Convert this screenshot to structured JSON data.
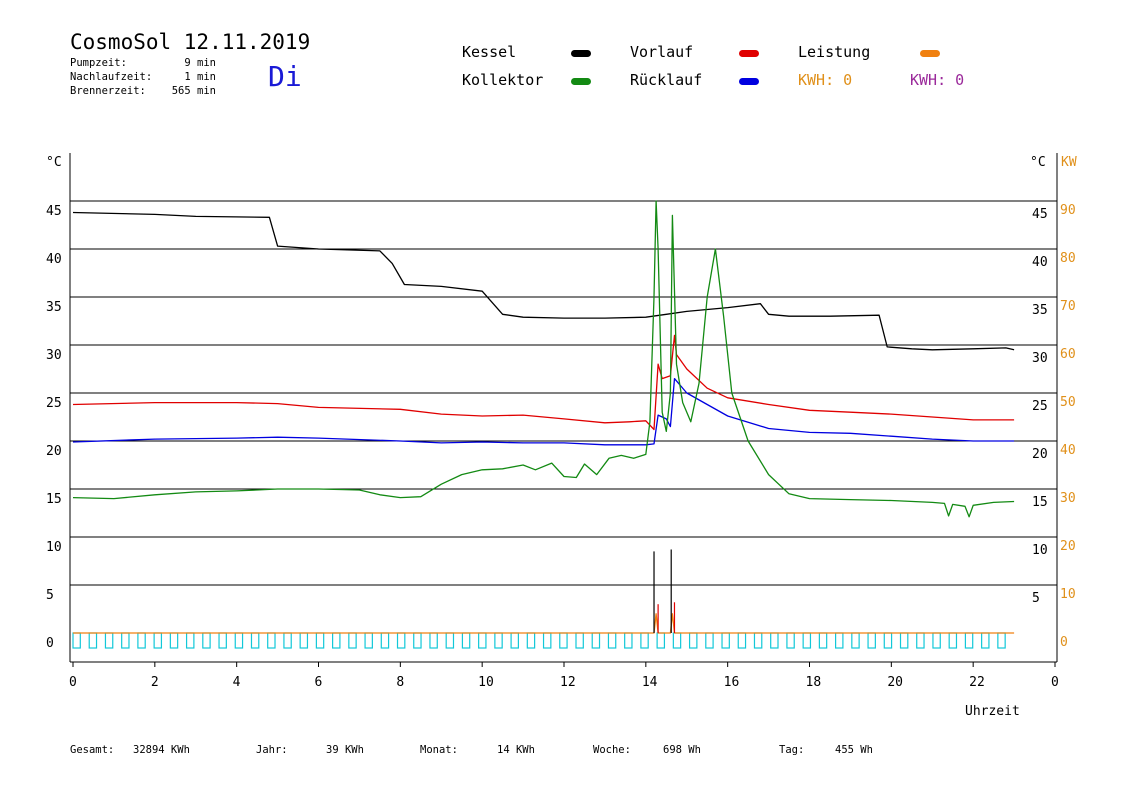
{
  "header": {
    "title": "CosmoSol 12.11.2019",
    "day": "Di",
    "pumpzeit_label": "Pumpzeit:",
    "pumpzeit_value": "9 min",
    "nachlauf_label": "Nachlaufzeit:",
    "nachlauf_value": "1 min",
    "brenner_label": "Brennerzeit:",
    "brenner_value": "565 min"
  },
  "legend": [
    {
      "label": "Kessel",
      "color": "#000000"
    },
    {
      "label": "Vorlauf",
      "color": "#e00000"
    },
    {
      "label": "Leistung",
      "color": "#f08010"
    },
    {
      "label": "Kollektor",
      "color": "#138a13"
    },
    {
      "label": "Rücklauf",
      "color": "#0000e0"
    }
  ],
  "kwh": [
    {
      "text": "KWH: 0",
      "color": "#e0901a"
    },
    {
      "text": "KWH: 0",
      "color": "#9b2a9b"
    }
  ],
  "footer": [
    {
      "label": "Gesamt:",
      "value": "32894 KWh"
    },
    {
      "label": "Jahr:",
      "value": "39 KWh"
    },
    {
      "label": "Monat:",
      "value": "14 KWh"
    },
    {
      "label": "Woche:",
      "value": "698 Wh"
    },
    {
      "label": "Tag:",
      "value": "455 Wh"
    }
  ],
  "chart_data": {
    "type": "line",
    "xlabel": "Uhrzeit",
    "ylabel_left": "°C",
    "ylabel_right": "°C",
    "ylabel_right2": "KW",
    "xlim": [
      0,
      24
    ],
    "ylim": [
      0,
      50
    ],
    "ylim_kw": [
      0,
      100
    ],
    "x_ticks": [
      "0",
      "2",
      "4",
      "6",
      "8",
      "10",
      "12",
      "14",
      "16",
      "18",
      "20",
      "22",
      "0"
    ],
    "y_ticks_left": [
      "0",
      "5",
      "10",
      "15",
      "20",
      "25",
      "30",
      "35",
      "40",
      "45"
    ],
    "y_ticks_right": [
      "5",
      "10",
      "15",
      "20",
      "25",
      "30",
      "35",
      "40",
      "45"
    ],
    "y_ticks_kw": [
      "0",
      "10",
      "20",
      "30",
      "40",
      "50",
      "60",
      "70",
      "80",
      "90"
    ],
    "grid": true,
    "series": [
      {
        "name": "Kessel",
        "color": "#000000",
        "points": [
          [
            0,
            43.8
          ],
          [
            2,
            43.6
          ],
          [
            3,
            43.4
          ],
          [
            4.8,
            43.3
          ],
          [
            5,
            40.3
          ],
          [
            6,
            40
          ],
          [
            7.5,
            39.8
          ],
          [
            7.8,
            38.5
          ],
          [
            8.1,
            36.3
          ],
          [
            9,
            36.1
          ],
          [
            10,
            35.6
          ],
          [
            10.5,
            33.2
          ],
          [
            11,
            32.9
          ],
          [
            12,
            32.8
          ],
          [
            13,
            32.8
          ],
          [
            14,
            32.9
          ],
          [
            14.5,
            33.2
          ],
          [
            15,
            33.5
          ],
          [
            16,
            33.9
          ],
          [
            16.8,
            34.3
          ],
          [
            17,
            33.2
          ],
          [
            17.5,
            33
          ],
          [
            18.5,
            33
          ],
          [
            19.7,
            33.1
          ],
          [
            19.9,
            29.8
          ],
          [
            20.5,
            29.6
          ],
          [
            21,
            29.5
          ],
          [
            22,
            29.6
          ],
          [
            22.8,
            29.7
          ],
          [
            23,
            29.5
          ]
        ]
      },
      {
        "name": "Vorlauf",
        "color": "#e00000",
        "points": [
          [
            0,
            23.8
          ],
          [
            2,
            24
          ],
          [
            4,
            24
          ],
          [
            5,
            23.9
          ],
          [
            6,
            23.5
          ],
          [
            8,
            23.3
          ],
          [
            9,
            22.8
          ],
          [
            10,
            22.6
          ],
          [
            11,
            22.7
          ],
          [
            12,
            22.3
          ],
          [
            13,
            21.9
          ],
          [
            13.6,
            22.0
          ],
          [
            14,
            22.1
          ],
          [
            14.2,
            21.2
          ],
          [
            14.3,
            28
          ],
          [
            14.4,
            26.5
          ],
          [
            14.6,
            26.8
          ],
          [
            14.7,
            31
          ],
          [
            14.75,
            29
          ],
          [
            15,
            27.5
          ],
          [
            15.5,
            25.5
          ],
          [
            16,
            24.5
          ],
          [
            17,
            23.8
          ],
          [
            18,
            23.2
          ],
          [
            19,
            23
          ],
          [
            20,
            22.8
          ],
          [
            21,
            22.5
          ],
          [
            22,
            22.2
          ],
          [
            23,
            22.2
          ]
        ]
      },
      {
        "name": "Rücklauf",
        "color": "#0000e0",
        "points": [
          [
            0,
            19.9
          ],
          [
            2,
            20.2
          ],
          [
            4,
            20.3
          ],
          [
            5,
            20.4
          ],
          [
            6,
            20.3
          ],
          [
            8,
            20.0
          ],
          [
            9,
            19.8
          ],
          [
            10,
            19.9
          ],
          [
            11,
            19.8
          ],
          [
            12,
            19.8
          ],
          [
            13,
            19.6
          ],
          [
            14,
            19.6
          ],
          [
            14.2,
            19.7
          ],
          [
            14.3,
            22.7
          ],
          [
            14.5,
            22.3
          ],
          [
            14.6,
            21.5
          ],
          [
            14.7,
            26.5
          ],
          [
            15,
            25
          ],
          [
            15.5,
            23.8
          ],
          [
            16,
            22.6
          ],
          [
            17,
            21.3
          ],
          [
            18,
            20.9
          ],
          [
            19,
            20.8
          ],
          [
            20,
            20.5
          ],
          [
            21,
            20.2
          ],
          [
            22,
            20.0
          ],
          [
            23,
            20.0
          ]
        ]
      },
      {
        "name": "Kollektor",
        "color": "#138a13",
        "points": [
          [
            0,
            14.1
          ],
          [
            1,
            14.0
          ],
          [
            2,
            14.4
          ],
          [
            3,
            14.7
          ],
          [
            4,
            14.8
          ],
          [
            5,
            15.0
          ],
          [
            6,
            15.0
          ],
          [
            7,
            14.9
          ],
          [
            7.5,
            14.4
          ],
          [
            8,
            14.1
          ],
          [
            8.5,
            14.2
          ],
          [
            9,
            15.5
          ],
          [
            9.5,
            16.5
          ],
          [
            10,
            17.0
          ],
          [
            10.5,
            17.1
          ],
          [
            11,
            17.5
          ],
          [
            11.3,
            17.0
          ],
          [
            11.7,
            17.7
          ],
          [
            12,
            16.3
          ],
          [
            12.3,
            16.2
          ],
          [
            12.5,
            17.6
          ],
          [
            12.8,
            16.5
          ],
          [
            13.1,
            18.2
          ],
          [
            13.4,
            18.5
          ],
          [
            13.7,
            18.2
          ],
          [
            14,
            18.6
          ],
          [
            14.1,
            22
          ],
          [
            14.2,
            35
          ],
          [
            14.25,
            45
          ],
          [
            14.3,
            40
          ],
          [
            14.4,
            23
          ],
          [
            14.5,
            21
          ],
          [
            14.6,
            25
          ],
          [
            14.65,
            43.5
          ],
          [
            14.75,
            28
          ],
          [
            14.9,
            24
          ],
          [
            15.1,
            22
          ],
          [
            15.3,
            26
          ],
          [
            15.5,
            35
          ],
          [
            15.7,
            40
          ],
          [
            15.9,
            33
          ],
          [
            16.1,
            25
          ],
          [
            16.5,
            20
          ],
          [
            17,
            16.5
          ],
          [
            17.5,
            14.5
          ],
          [
            18,
            14.0
          ],
          [
            19,
            13.9
          ],
          [
            20,
            13.8
          ],
          [
            21,
            13.6
          ],
          [
            21.3,
            13.5
          ],
          [
            21.4,
            12.2
          ],
          [
            21.5,
            13.4
          ],
          [
            21.8,
            13.2
          ],
          [
            21.9,
            12.1
          ],
          [
            22,
            13.3
          ],
          [
            22.5,
            13.6
          ],
          [
            23,
            13.7
          ]
        ]
      },
      {
        "name": "Leistung",
        "color": "#f08010",
        "axis": "kw",
        "points": [
          [
            0,
            0
          ],
          [
            14.2,
            0
          ],
          [
            14.25,
            4
          ],
          [
            14.3,
            0
          ],
          [
            14.6,
            0
          ],
          [
            14.65,
            4
          ],
          [
            14.7,
            0
          ],
          [
            23,
            0
          ]
        ]
      }
    ],
    "spikes": [
      [
        14.2,
        14.3,
        8.5
      ],
      [
        14.62,
        14.7,
        8.7
      ]
    ],
    "pump_indicator": {
      "color": "#12c8d8",
      "count": 58
    }
  }
}
